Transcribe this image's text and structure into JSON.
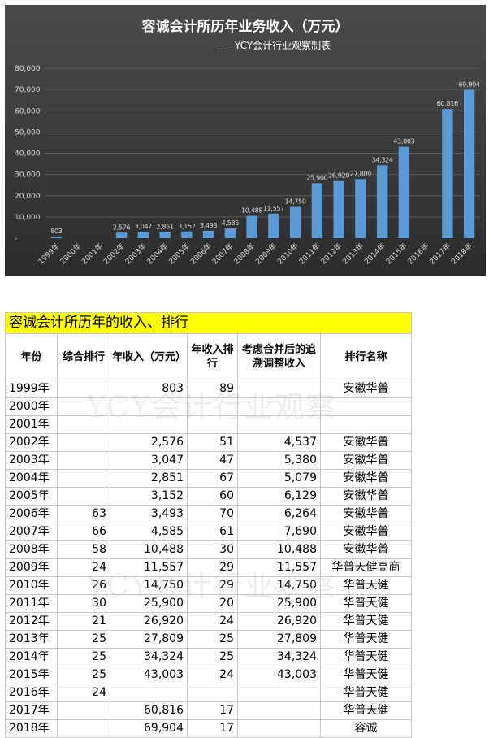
{
  "chart_data": {
    "type": "bar",
    "title": "容诚会计所历年业务收入（万元）",
    "subtitle": "——YCY会计行业观察制表",
    "categories": [
      "1999年",
      "2000年",
      "2001年",
      "2002年",
      "2003年",
      "2004年",
      "2005年",
      "2006年",
      "2007年",
      "2008年",
      "2009年",
      "2010年",
      "2011年",
      "2012年",
      "2013年",
      "2014年",
      "2015年",
      "2016年",
      "2017年",
      "2018年"
    ],
    "values": [
      803,
      null,
      null,
      2576,
      3047,
      2851,
      3152,
      3493,
      4585,
      10488,
      11557,
      14750,
      25900,
      26920,
      27809,
      34324,
      43003,
      null,
      60816,
      69904
    ],
    "data_labels": [
      "803",
      "",
      "",
      "2,576",
      "3,047",
      "2,851",
      "3,152",
      "3,493",
      "4,585",
      "10,488",
      "11,557",
      "14,750",
      "25,900",
      "26,920",
      "27,809",
      "34,324",
      "43,003",
      "",
      "60,816",
      "69,904"
    ],
    "yticks": [
      "-",
      "10,000",
      "20,000",
      "30,000",
      "40,000",
      "50,000",
      "60,000",
      "70,000",
      "80,000"
    ],
    "ylim": [
      0,
      80000
    ],
    "grid": true,
    "colors": {
      "bar": "#5b9bd5",
      "background": "#3c3c3c",
      "grid": "#5a5a5a",
      "text": "#d9d9d9"
    }
  },
  "table": {
    "title": "容诚会计所历年的收入、排行",
    "headers": [
      "年份",
      "综合排行",
      "年收入（万元）",
      "年收入排行",
      "考虑合并后的追溯调整收入",
      "排行名称"
    ],
    "rows": [
      [
        "1999年",
        "",
        "803",
        "89",
        "",
        "安徽华普"
      ],
      [
        "2000年",
        "",
        "",
        "",
        "",
        ""
      ],
      [
        "2001年",
        "",
        "",
        "",
        "",
        ""
      ],
      [
        "2002年",
        "",
        "2,576",
        "51",
        "4,537",
        "安徽华普"
      ],
      [
        "2003年",
        "",
        "3,047",
        "47",
        "5,380",
        "安徽华普"
      ],
      [
        "2004年",
        "",
        "2,851",
        "67",
        "5,079",
        "安徽华普"
      ],
      [
        "2005年",
        "",
        "3,152",
        "60",
        "6,129",
        "安徽华普"
      ],
      [
        "2006年",
        "63",
        "3,493",
        "70",
        "6,264",
        "安徽华普"
      ],
      [
        "2007年",
        "66",
        "4,585",
        "61",
        "7,690",
        "安徽华普"
      ],
      [
        "2008年",
        "58",
        "10,488",
        "30",
        "10,488",
        "安徽华普"
      ],
      [
        "2009年",
        "24",
        "11,557",
        "29",
        "11,557",
        "华普天健高商"
      ],
      [
        "2010年",
        "26",
        "14,750",
        "29",
        "14,750",
        "华普天健"
      ],
      [
        "2011年",
        "30",
        "25,900",
        "20",
        "25,900",
        "华普天健"
      ],
      [
        "2012年",
        "21",
        "26,920",
        "24",
        "26,920",
        "华普天健"
      ],
      [
        "2013年",
        "25",
        "27,809",
        "25",
        "27,809",
        "华普天健"
      ],
      [
        "2014年",
        "25",
        "34,324",
        "25",
        "34,324",
        "华普天健"
      ],
      [
        "2015年",
        "25",
        "43,003",
        "24",
        "43,003",
        "华普天健"
      ],
      [
        "2016年",
        "24",
        "",
        "",
        "",
        "华普天健"
      ],
      [
        "2017年",
        "",
        "60,816",
        "17",
        "",
        "华普天健"
      ],
      [
        "2018年",
        "",
        "69,904",
        "17",
        "",
        "容诚"
      ]
    ],
    "watermark_1": "YCY会计行业观察",
    "watermark_2": "YCY会计行业观察"
  }
}
